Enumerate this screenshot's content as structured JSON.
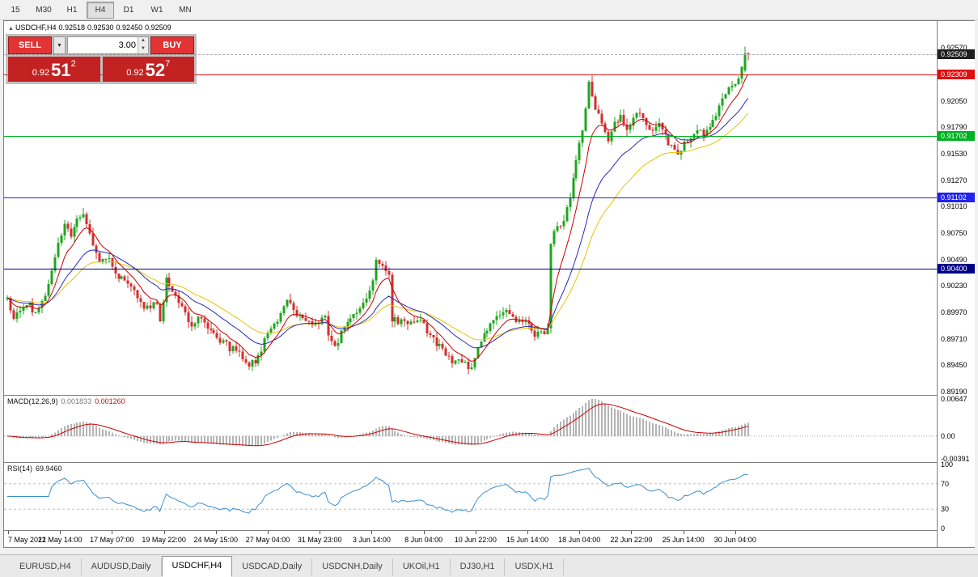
{
  "toolbar": {
    "timeframes": [
      {
        "label": "15",
        "active": false
      },
      {
        "label": "M30",
        "active": false
      },
      {
        "label": "H1",
        "active": false
      },
      {
        "label": "H4",
        "active": true
      },
      {
        "label": "D1",
        "active": false
      },
      {
        "label": "W1",
        "active": false
      },
      {
        "label": "MN",
        "active": false
      }
    ]
  },
  "chart": {
    "title": {
      "collapse_icon": "▲",
      "symbol": "USDCHF,H4",
      "open": "0.92518",
      "high": "0.92530",
      "low": "0.92450",
      "close": "0.92509"
    },
    "one_click": {
      "sell_label": "SELL",
      "buy_label": "BUY",
      "volume": "3.00",
      "icons": {
        "dropdown": "▼",
        "up": "▲",
        "down": "▼"
      },
      "bid": {
        "big_figure": "0.92",
        "pips": "51",
        "pipette": "2"
      },
      "ask": {
        "big_figure": "0.92",
        "pips": "52",
        "pipette": "7"
      }
    },
    "axis": {
      "labels": [
        "0.92570",
        "0.92050",
        "0.91790",
        "0.91530",
        "0.91270",
        "0.91010",
        "0.90750",
        "0.90490",
        "0.90230",
        "0.89970",
        "0.89710",
        "0.89450",
        "0.89190"
      ],
      "current": {
        "label": "0.92509",
        "value": 0.92509,
        "badge_color": "#1f1f1f"
      }
    },
    "hlines": [
      {
        "value": 0.92309,
        "label": "0.92309",
        "color": "#dd1111"
      },
      {
        "value": 0.91702,
        "label": "0.91702",
        "color": "#00b122"
      },
      {
        "value": 0.91102,
        "label": "0.91102",
        "color": "#2222ee"
      },
      {
        "value": 0.904,
        "label": "0.90400",
        "color": "#000088"
      }
    ],
    "time_axis": [
      "7 May 2021",
      "12 May 14:00",
      "17 May 07:00",
      "19 May 22:00",
      "24 May 15:00",
      "27 May 04:00",
      "31 May 23:00",
      "3 Jun 14:00",
      "8 Jun 04:00",
      "10 Jun 22:00",
      "15 Jun 14:00",
      "18 Jun 04:00",
      "22 Jun 22:00",
      "25 Jun 14:00",
      "30 Jun 04:00"
    ]
  },
  "indicators": {
    "macd": {
      "label": "MACD(12,26,9)",
      "value_main": "0.001833",
      "value_signal": "0.001260",
      "axis": [
        "0.00647",
        "0.00",
        "-0.00391"
      ]
    },
    "rsi": {
      "label": "RSI(14)",
      "value": "69.9460",
      "axis": [
        "100",
        "70",
        "30",
        "0"
      ],
      "levels": [
        70,
        30
      ]
    }
  },
  "chart_data": {
    "type": "candlestick",
    "symbol": "USDCHF",
    "timeframe": "H4",
    "last_ohlc": {
      "open": 0.92518,
      "high": 0.9253,
      "low": 0.9245,
      "close": 0.92509
    },
    "bid": 0.92512,
    "ask": 0.92527,
    "n_candles": 234,
    "seed": 20210630,
    "noise": 0.0004,
    "wick": 0.0006,
    "anchors": [
      [
        0,
        0.901
      ],
      [
        2,
        0.8992
      ],
      [
        4,
        0.9002
      ],
      [
        6,
        0.9008
      ],
      [
        9,
        0.8997
      ],
      [
        12,
        0.9012
      ],
      [
        14,
        0.9035
      ],
      [
        16,
        0.9065
      ],
      [
        18,
        0.9085
      ],
      [
        20,
        0.9068
      ],
      [
        22,
        0.9088
      ],
      [
        24,
        0.9092
      ],
      [
        26,
        0.9075
      ],
      [
        29,
        0.9047
      ],
      [
        32,
        0.905
      ],
      [
        35,
        0.9032
      ],
      [
        38,
        0.9022
      ],
      [
        41,
        0.9012
      ],
      [
        44,
        0.9
      ],
      [
        47,
        0.9006
      ],
      [
        48,
        0.8985
      ],
      [
        50,
        0.9032
      ],
      [
        52,
        0.9018
      ],
      [
        55,
        0.8999
      ],
      [
        58,
        0.8986
      ],
      [
        61,
        0.8992
      ],
      [
        64,
        0.8978
      ],
      [
        67,
        0.897
      ],
      [
        70,
        0.8962
      ],
      [
        73,
        0.8956
      ],
      [
        76,
        0.8945
      ],
      [
        79,
        0.8953
      ],
      [
        82,
        0.8978
      ],
      [
        85,
        0.8985
      ],
      [
        88,
        0.9012
      ],
      [
        91,
        0.8996
      ],
      [
        94,
        0.8988
      ],
      [
        97,
        0.8986
      ],
      [
        100,
        0.8994
      ],
      [
        101,
        0.8972
      ],
      [
        103,
        0.8962
      ],
      [
        105,
        0.8978
      ],
      [
        108,
        0.899
      ],
      [
        111,
        0.9001
      ],
      [
        114,
        0.9015
      ],
      [
        116,
        0.9048
      ],
      [
        118,
        0.9042
      ],
      [
        120,
        0.9035
      ],
      [
        121,
        0.8992
      ],
      [
        125,
        0.8986
      ],
      [
        128,
        0.8991
      ],
      [
        131,
        0.8983
      ],
      [
        134,
        0.897
      ],
      [
        137,
        0.8958
      ],
      [
        140,
        0.895
      ],
      [
        143,
        0.8946
      ],
      [
        146,
        0.8941
      ],
      [
        148,
        0.8966
      ],
      [
        151,
        0.8981
      ],
      [
        154,
        0.8996
      ],
      [
        157,
        0.8999
      ],
      [
        160,
        0.8991
      ],
      [
        163,
        0.8986
      ],
      [
        166,
        0.8976
      ],
      [
        169,
        0.8978
      ],
      [
        170,
        0.8985
      ],
      [
        171,
        0.9068
      ],
      [
        173,
        0.9078
      ],
      [
        175,
        0.9085
      ],
      [
        177,
        0.9108
      ],
      [
        179,
        0.9145
      ],
      [
        181,
        0.9176
      ],
      [
        183,
        0.922
      ],
      [
        185,
        0.92
      ],
      [
        187,
        0.9186
      ],
      [
        189,
        0.9166
      ],
      [
        191,
        0.9181
      ],
      [
        193,
        0.9191
      ],
      [
        195,
        0.9176
      ],
      [
        197,
        0.9186
      ],
      [
        199,
        0.9196
      ],
      [
        201,
        0.9181
      ],
      [
        203,
        0.9173
      ],
      [
        205,
        0.9181
      ],
      [
        207,
        0.9169
      ],
      [
        209,
        0.9161
      ],
      [
        211,
        0.915
      ],
      [
        213,
        0.9163
      ],
      [
        215,
        0.9171
      ],
      [
        217,
        0.9179
      ],
      [
        219,
        0.9173
      ],
      [
        221,
        0.9181
      ],
      [
        223,
        0.9191
      ],
      [
        225,
        0.9206
      ],
      [
        227,
        0.9216
      ],
      [
        229,
        0.9223
      ],
      [
        231,
        0.9235
      ],
      [
        233,
        0.9251
      ]
    ],
    "final_overrides": [
      {
        "i": 232,
        "o": 0.9235,
        "h": 0.92585,
        "l": 0.9233,
        "c": 0.92518
      },
      {
        "i": 233,
        "o": 0.92518,
        "h": 0.9253,
        "l": 0.9245,
        "c": 0.92509
      }
    ],
    "colors": {
      "up": "#1fa51f",
      "down": "#d03030",
      "ma_fast": "#cc0000",
      "ma_mid": "#2a2ab8",
      "ma_slow": "#e6c400",
      "macd_hist": "#b4b4b4",
      "macd_signal": "#cc0000",
      "rsi": "#3c8fd0",
      "sell_button": "#e23434",
      "price_box": "#c32222"
    }
  },
  "tabs": [
    {
      "label": "EURUSD,H4",
      "active": false
    },
    {
      "label": "AUDUSD,Daily",
      "active": false
    },
    {
      "label": "USDCHF,H4",
      "active": true
    },
    {
      "label": "USDCAD,Daily",
      "active": false
    },
    {
      "label": "USDCNH,Daily",
      "active": false
    },
    {
      "label": "UKOil,H1",
      "active": false
    },
    {
      "label": "DJ30,H1",
      "active": false
    },
    {
      "label": "USDX,H1",
      "active": false
    }
  ]
}
